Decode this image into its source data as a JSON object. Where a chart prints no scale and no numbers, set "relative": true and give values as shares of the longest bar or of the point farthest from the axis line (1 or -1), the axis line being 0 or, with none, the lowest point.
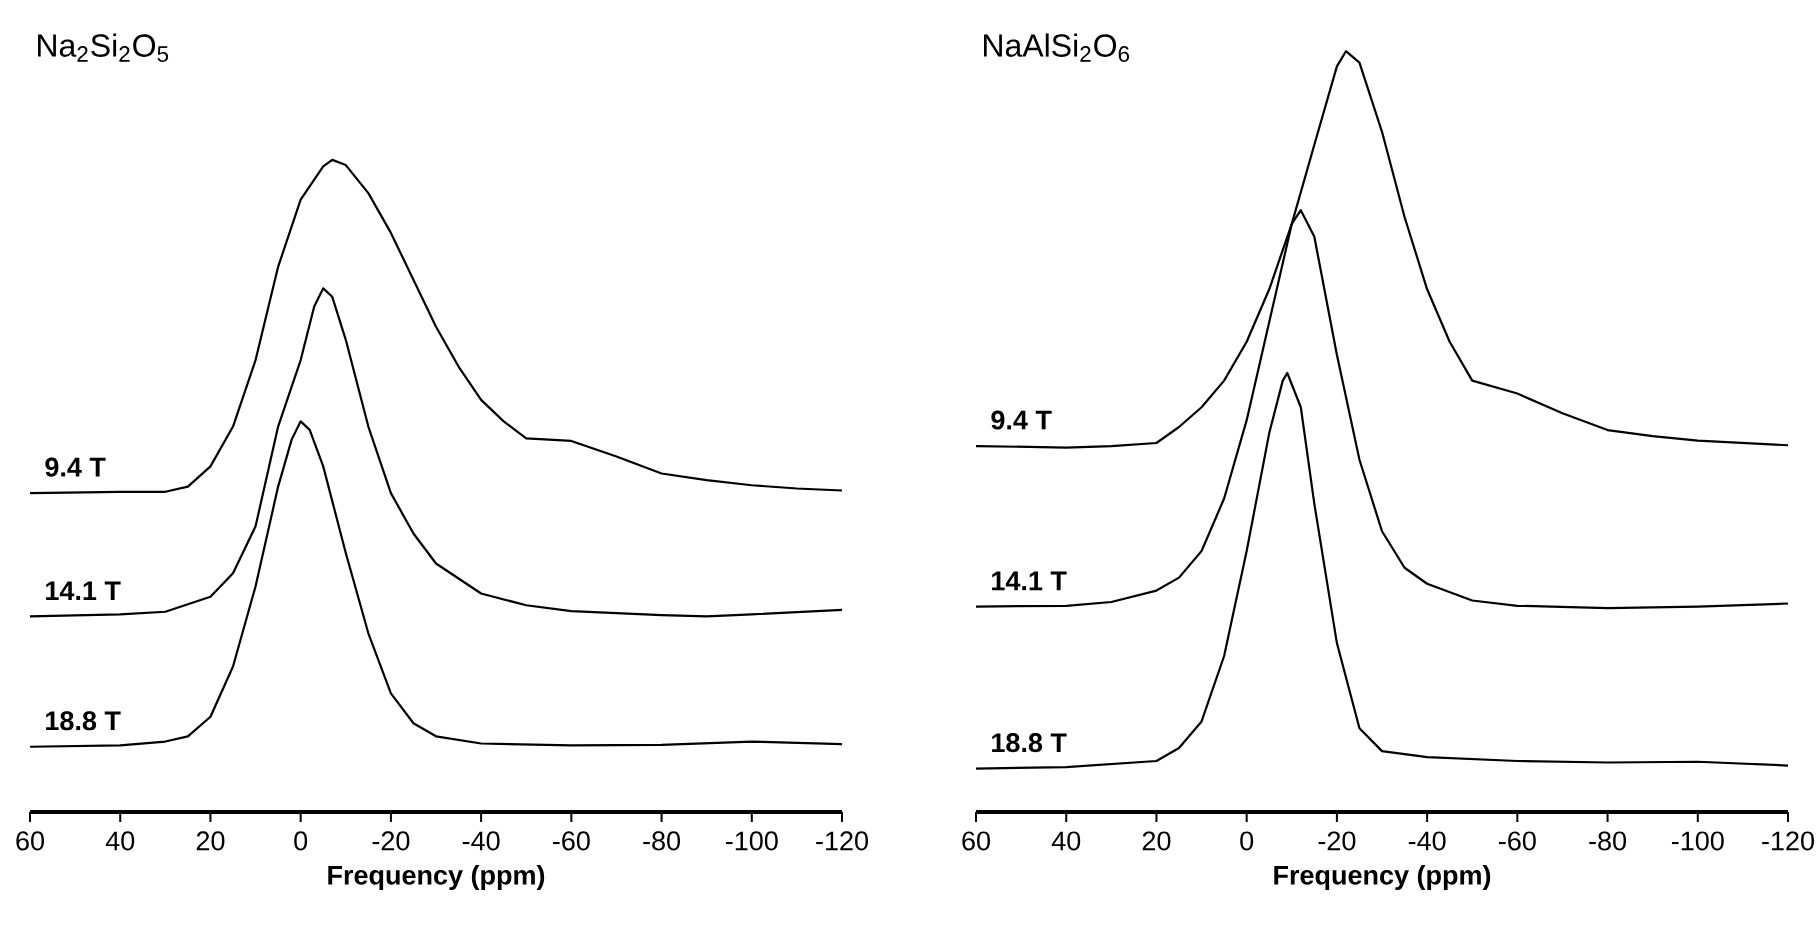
{
  "chart_data": [
    {
      "type": "line",
      "title": "Na$_{2}$Si$_{2}$O$_{5}$",
      "xlabel": "Frequency (ppm)",
      "relative": true,
      "tick_labels": "x",
      "xlim": [
        60,
        -120
      ],
      "xticks": [
        60,
        40,
        20,
        0,
        -20,
        -40,
        -60,
        -80,
        -100,
        -120
      ],
      "series": [
        {
          "name": "9.4 T",
          "color": "#000000",
          "x": [
            60,
            40,
            30,
            25,
            20,
            15,
            10,
            5,
            0,
            -5,
            -7,
            -10,
            -15,
            -20,
            -25,
            -30,
            -35,
            -40,
            -45,
            -50,
            -60,
            -70,
            -80,
            -90,
            -100,
            -110,
            -120
          ],
          "values": [
            0.489,
            0.491,
            0.491,
            0.499,
            0.53,
            0.591,
            0.693,
            0.836,
            0.939,
            0.99,
            1.0,
            0.992,
            0.949,
            0.888,
            0.816,
            0.744,
            0.683,
            0.632,
            0.599,
            0.573,
            0.569,
            0.545,
            0.519,
            0.509,
            0.501,
            0.496,
            0.493
          ]
        },
        {
          "name": "14.1 T",
          "color": "#000000",
          "x": [
            60,
            40,
            30,
            20,
            15,
            10,
            5,
            0,
            -3,
            -5,
            -7,
            -10,
            -15,
            -20,
            -25,
            -30,
            -40,
            -50,
            -60,
            -80,
            -90,
            -100,
            -120
          ],
          "values": [
            0.3,
            0.303,
            0.307,
            0.33,
            0.366,
            0.438,
            0.591,
            0.693,
            0.775,
            0.803,
            0.79,
            0.724,
            0.591,
            0.489,
            0.427,
            0.381,
            0.335,
            0.317,
            0.308,
            0.302,
            0.3,
            0.303,
            0.31
          ]
        },
        {
          "name": "18.8 T",
          "color": "#000000",
          "x": [
            60,
            40,
            30,
            25,
            20,
            15,
            10,
            5,
            2,
            0,
            -2,
            -5,
            -10,
            -15,
            -20,
            -25,
            -30,
            -40,
            -60,
            -80,
            -100,
            -120
          ],
          "values": [
            0.1,
            0.102,
            0.108,
            0.116,
            0.146,
            0.223,
            0.346,
            0.499,
            0.571,
            0.599,
            0.586,
            0.53,
            0.397,
            0.274,
            0.182,
            0.136,
            0.116,
            0.105,
            0.102,
            0.103,
            0.108,
            0.104
          ]
        }
      ]
    },
    {
      "type": "line",
      "title": "NaAlSi$_{2}$O$_{6}$",
      "xlabel": "Frequency (ppm)",
      "relative": true,
      "tick_labels": "x",
      "xlim": [
        60,
        -120
      ],
      "xticks": [
        60,
        40,
        20,
        0,
        -20,
        -40,
        -60,
        -80,
        -100,
        -120
      ],
      "series": [
        {
          "name": "9.4 T",
          "color": "#000000",
          "x": [
            60,
            40,
            30,
            20,
            15,
            10,
            5,
            0,
            -5,
            -10,
            -15,
            -20,
            -22,
            -25,
            -30,
            -35,
            -40,
            -45,
            -50,
            -60,
            -70,
            -80,
            -90,
            -100,
            -120
          ],
          "values": [
            0.481,
            0.479,
            0.481,
            0.485,
            0.506,
            0.532,
            0.567,
            0.618,
            0.687,
            0.773,
            0.877,
            0.98,
            1.0,
            0.985,
            0.894,
            0.782,
            0.687,
            0.618,
            0.567,
            0.55,
            0.524,
            0.502,
            0.494,
            0.488,
            0.482
          ]
        },
        {
          "name": "14.1 T",
          "color": "#000000",
          "x": [
            60,
            40,
            30,
            20,
            15,
            10,
            5,
            0,
            -5,
            -10,
            -12,
            -15,
            -20,
            -25,
            -30,
            -35,
            -40,
            -50,
            -60,
            -80,
            -100,
            -120
          ],
          "values": [
            0.27,
            0.271,
            0.276,
            0.291,
            0.308,
            0.343,
            0.412,
            0.515,
            0.644,
            0.773,
            0.791,
            0.756,
            0.601,
            0.463,
            0.369,
            0.321,
            0.3,
            0.278,
            0.271,
            0.268,
            0.27,
            0.274
          ]
        },
        {
          "name": "18.8 T",
          "color": "#000000",
          "x": [
            60,
            40,
            20,
            15,
            10,
            5,
            0,
            -5,
            -8,
            -9,
            -12,
            -15,
            -20,
            -25,
            -30,
            -40,
            -60,
            -80,
            -100,
            -120
          ],
          "values": [
            0.057,
            0.059,
            0.067,
            0.084,
            0.119,
            0.205,
            0.343,
            0.498,
            0.567,
            0.577,
            0.532,
            0.405,
            0.222,
            0.11,
            0.08,
            0.072,
            0.067,
            0.065,
            0.066,
            0.061
          ]
        }
      ]
    }
  ]
}
